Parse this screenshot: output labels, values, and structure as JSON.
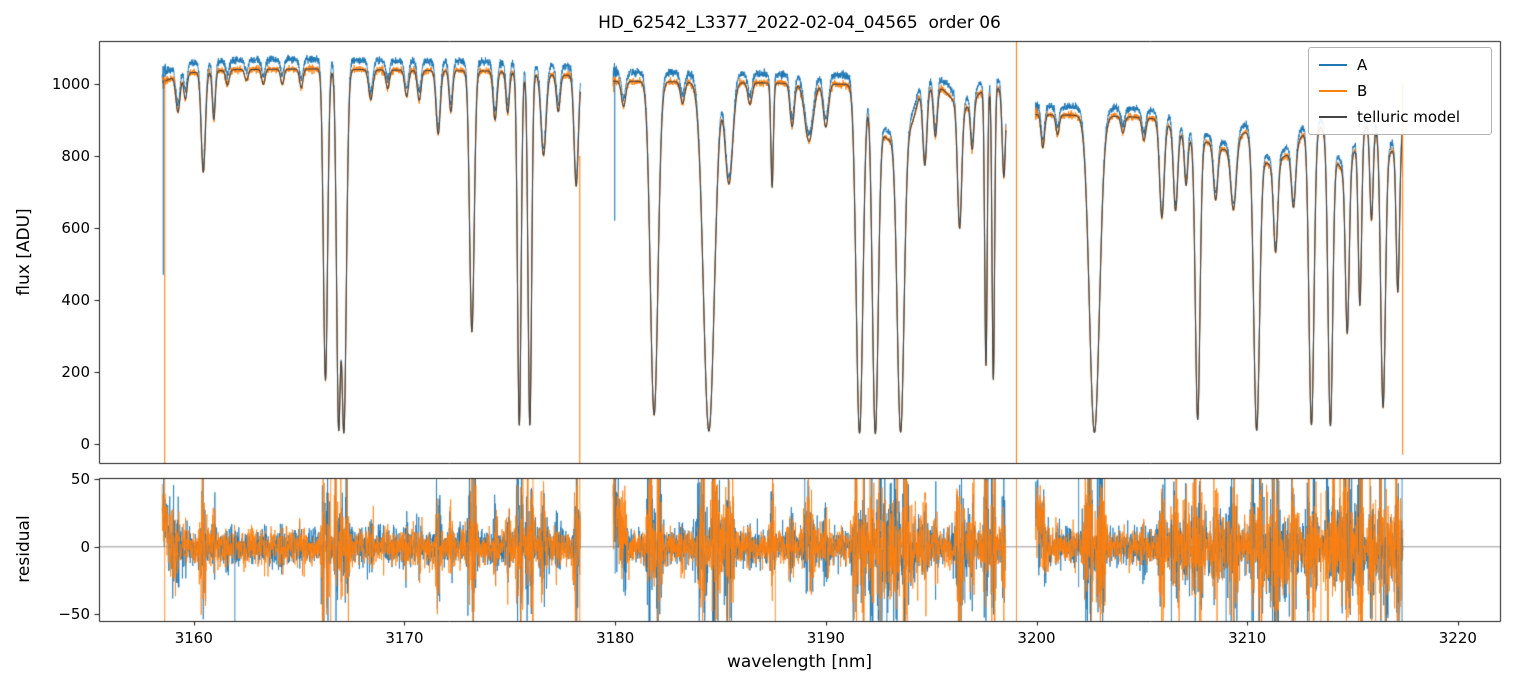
{
  "chart_data": {
    "type": "line",
    "title": "HD_62542_L3377_2022-02-04_04565  order 06",
    "xlabel": "wavelength [nm]",
    "xlim": [
      3155.5,
      3222.0
    ],
    "xticks": [
      {
        "v": 3160,
        "label": "3160"
      },
      {
        "v": 3170,
        "label": "3170"
      },
      {
        "v": 3180,
        "label": "3180"
      },
      {
        "v": 3190,
        "label": "3190"
      },
      {
        "v": 3200,
        "label": "3200"
      },
      {
        "v": 3210,
        "label": "3210"
      },
      {
        "v": 3220,
        "label": "3220"
      }
    ],
    "panels": [
      {
        "ylabel": "flux [ADU]",
        "ylim": [
          -53,
          1119.4
        ],
        "yticks": [
          {
            "v": 0,
            "label": "0"
          },
          {
            "v": 200,
            "label": "200"
          },
          {
            "v": 400,
            "label": "400"
          },
          {
            "v": 600,
            "label": "600"
          },
          {
            "v": 800,
            "label": "800"
          },
          {
            "v": 1000,
            "label": "1000"
          }
        ]
      },
      {
        "ylabel": "residual",
        "ylim": [
          -55,
          51
        ],
        "zero_line": true,
        "yticks": [
          {
            "v": 50,
            "label": "50"
          },
          {
            "v": 0,
            "label": "0"
          },
          {
            "v": -50,
            "label": "−50"
          }
        ]
      }
    ],
    "series": [
      {
        "name": "A",
        "color": "#1f77b4",
        "offset": 1.025,
        "noise": 5
      },
      {
        "name": "B",
        "color": "#ff7f0e",
        "offset": 1.0,
        "noise": 5
      },
      {
        "name": "telluric model",
        "color": "#444444",
        "offset": 1.0,
        "noise": 0
      }
    ],
    "legend_position": "upper right",
    "segments": [
      {
        "range": [
          3158.5,
          3178.35
        ],
        "continuum": [
          [
            3158.5,
            1005
          ],
          [
            3159.5,
            1030
          ],
          [
            3162.0,
            1040
          ],
          [
            3166.0,
            1042
          ],
          [
            3170.0,
            1038
          ],
          [
            3174.0,
            1036
          ],
          [
            3178.35,
            1022
          ]
        ]
      },
      {
        "range": [
          3179.9,
          3198.55
        ],
        "continuum": [
          [
            3179.9,
            1008
          ],
          [
            3185.0,
            1005
          ],
          [
            3190.0,
            1000
          ],
          [
            3195.0,
            995
          ],
          [
            3198.55,
            988
          ]
        ]
      },
      {
        "range": [
          3199.95,
          3217.4
        ],
        "continuum": [
          [
            3199.95,
            915
          ],
          [
            3203.0,
            912
          ],
          [
            3206.0,
            905
          ],
          [
            3210.0,
            898
          ],
          [
            3213.0,
            890
          ],
          [
            3217.4,
            905
          ]
        ]
      }
    ],
    "absorption_lines": [
      [
        3159.25,
        0.1,
        0.1
      ],
      [
        3159.6,
        0.07,
        0.08
      ],
      [
        3160.45,
        0.27,
        0.1
      ],
      [
        3160.95,
        0.13,
        0.07
      ],
      [
        3161.6,
        0.04,
        0.08
      ],
      [
        3162.5,
        0.03,
        0.08
      ],
      [
        3163.3,
        0.04,
        0.08
      ],
      [
        3164.2,
        0.04,
        0.08
      ],
      [
        3165.1,
        0.05,
        0.08
      ],
      [
        3166.25,
        0.83,
        0.1
      ],
      [
        3166.88,
        0.96,
        0.1
      ],
      [
        3167.12,
        0.97,
        0.12
      ],
      [
        3168.4,
        0.08,
        0.1
      ],
      [
        3169.2,
        0.05,
        0.08
      ],
      [
        3170.1,
        0.07,
        0.09
      ],
      [
        3170.7,
        0.08,
        0.09
      ],
      [
        3171.6,
        0.17,
        0.1
      ],
      [
        3172.2,
        0.11,
        0.08
      ],
      [
        3173.2,
        0.7,
        0.11
      ],
      [
        3174.3,
        0.13,
        0.09
      ],
      [
        3174.9,
        0.11,
        0.08
      ],
      [
        3175.45,
        0.95,
        0.085
      ],
      [
        3175.95,
        0.95,
        0.085
      ],
      [
        3176.6,
        0.22,
        0.12
      ],
      [
        3177.3,
        0.1,
        0.09
      ],
      [
        3178.15,
        0.3,
        0.1
      ],
      [
        3180.4,
        0.07,
        0.1
      ],
      [
        3181.85,
        0.92,
        0.18
      ],
      [
        3183.2,
        0.06,
        0.1
      ],
      [
        3184.45,
        0.965,
        0.26
      ],
      [
        3185.4,
        0.28,
        0.18
      ],
      [
        3186.4,
        0.06,
        0.1
      ],
      [
        3187.45,
        0.29,
        0.06
      ],
      [
        3188.4,
        0.12,
        0.1
      ],
      [
        3189.2,
        0.16,
        0.2
      ],
      [
        3190.0,
        0.12,
        0.12
      ],
      [
        3191.6,
        0.97,
        0.16
      ],
      [
        3192.35,
        0.97,
        0.14
      ],
      [
        3192.95,
        0.15,
        0.4
      ],
      [
        3193.55,
        0.965,
        0.17
      ],
      [
        3194.05,
        0.1,
        0.25
      ],
      [
        3194.7,
        0.22,
        0.1
      ],
      [
        3195.2,
        0.14,
        0.09
      ],
      [
        3196.35,
        0.36,
        0.1
      ],
      [
        3196.5,
        0.06,
        0.5
      ],
      [
        3196.95,
        0.14,
        0.08
      ],
      [
        3197.6,
        0.78,
        0.06
      ],
      [
        3197.95,
        0.82,
        0.06
      ],
      [
        3198.45,
        0.25,
        0.08
      ],
      [
        3200.3,
        0.1,
        0.08
      ],
      [
        3201.0,
        0.06,
        0.08
      ],
      [
        3202.75,
        0.965,
        0.24
      ],
      [
        3204.1,
        0.05,
        0.09
      ],
      [
        3205.1,
        0.07,
        0.09
      ],
      [
        3205.95,
        0.3,
        0.11
      ],
      [
        3206.6,
        0.26,
        0.1
      ],
      [
        3207.1,
        0.16,
        0.08
      ],
      [
        3207.65,
        0.92,
        0.11
      ],
      [
        3207.5,
        0.06,
        0.8
      ],
      [
        3208.5,
        0.18,
        0.1
      ],
      [
        3209.0,
        0.08,
        0.6
      ],
      [
        3209.35,
        0.22,
        0.13
      ],
      [
        3210.45,
        0.955,
        0.14
      ],
      [
        3211.0,
        0.12,
        0.5
      ],
      [
        3211.35,
        0.32,
        0.1
      ],
      [
        3212.0,
        0.08,
        0.5
      ],
      [
        3212.2,
        0.2,
        0.1
      ],
      [
        3213.05,
        0.94,
        0.12
      ],
      [
        3213.95,
        0.94,
        0.11
      ],
      [
        3214.6,
        0.15,
        0.5
      ],
      [
        3214.75,
        0.6,
        0.09
      ],
      [
        3215.35,
        0.55,
        0.08
      ],
      [
        3215.9,
        0.3,
        0.08
      ],
      [
        3216.45,
        0.88,
        0.11
      ],
      [
        3216.8,
        0.1,
        0.4
      ],
      [
        3217.15,
        0.5,
        0.08
      ]
    ],
    "flux_spikes": [
      {
        "x": 3158.62,
        "series": 1,
        "y": [
          -53,
          1012
        ]
      },
      {
        "x": 3158.55,
        "series": 0,
        "y": [
          470,
          1012
        ]
      },
      {
        "x": 3178.32,
        "series": 1,
        "y": [
          -53,
          800
        ]
      },
      {
        "x": 3179.98,
        "series": 0,
        "y": [
          620,
          1005
        ]
      },
      {
        "x": 3199.05,
        "series": 1,
        "y": [
          -53,
          1119
        ]
      },
      {
        "x": 3217.38,
        "series": 1,
        "y": [
          -30,
          1005
        ]
      }
    ],
    "residual_spikes": [
      {
        "x": 3158.62,
        "series": 1,
        "y": [
          -55,
          51
        ]
      },
      {
        "x": 3161.95,
        "series": 0,
        "y": [
          -55,
          8
        ]
      },
      {
        "x": 3166.5,
        "series": 1,
        "y": [
          -55,
          51
        ]
      },
      {
        "x": 3176.1,
        "series": 1,
        "y": [
          -55,
          51
        ]
      },
      {
        "x": 3178.32,
        "series": 1,
        "y": [
          -55,
          51
        ]
      },
      {
        "x": 3180.0,
        "series": 0,
        "y": [
          -20,
          51
        ]
      },
      {
        "x": 3183.95,
        "series": 0,
        "y": [
          -25,
          51
        ]
      },
      {
        "x": 3187.6,
        "series": 1,
        "y": [
          -55,
          30
        ]
      },
      {
        "x": 3189.0,
        "series": 0,
        "y": [
          -15,
          51
        ]
      },
      {
        "x": 3192.9,
        "series": 0,
        "y": [
          -55,
          25
        ]
      },
      {
        "x": 3196.6,
        "series": 0,
        "y": [
          -42,
          20
        ]
      },
      {
        "x": 3198.0,
        "series": 1,
        "y": [
          -55,
          51
        ]
      },
      {
        "x": 3199.05,
        "series": 1,
        "y": [
          -55,
          51
        ]
      },
      {
        "x": 3202.0,
        "series": 0,
        "y": [
          -30,
          51
        ]
      },
      {
        "x": 3206.4,
        "series": 0,
        "y": [
          -55,
          20
        ]
      },
      {
        "x": 3209.0,
        "series": 0,
        "y": [
          -55,
          25
        ]
      },
      {
        "x": 3211.1,
        "series": 0,
        "y": [
          -45,
          15
        ]
      },
      {
        "x": 3213.5,
        "series": 1,
        "y": [
          -55,
          40
        ]
      },
      {
        "x": 3216.1,
        "series": 1,
        "y": [
          -55,
          35
        ]
      },
      {
        "x": 3217.35,
        "series": 0,
        "y": [
          -55,
          51
        ]
      }
    ],
    "residual": {
      "noise_sigma": 6.5,
      "edge_amp": 38,
      "clip": [
        -54.8,
        50.8
      ]
    }
  }
}
